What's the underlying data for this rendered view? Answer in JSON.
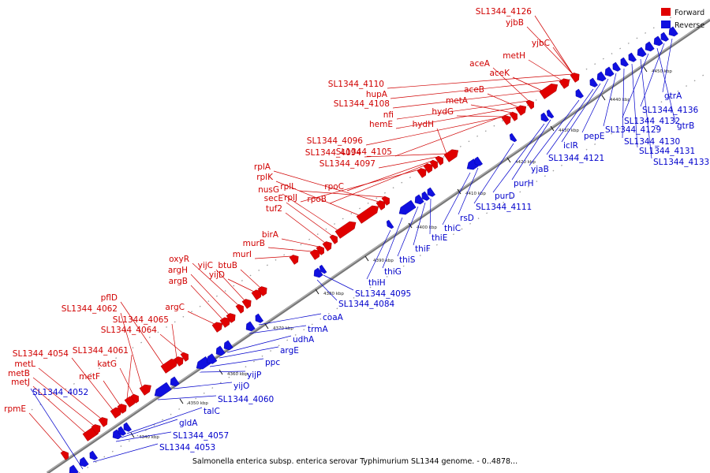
{
  "caption": "Salmonella enterica subsp. enterica serovar Typhimurium SL1344 genome. - 0..4878...",
  "legend": {
    "forward": "Forward",
    "reverse": "Reverse"
  },
  "colors": {
    "forward": "#e00000",
    "reverse": "#1010e0",
    "forward_label": "#d00000",
    "reverse_label": "#0000cc",
    "backbone": "#888888"
  },
  "ticks": [
    "4340 kbp",
    "4350 kbp",
    "4360 kbp",
    "4370 kbp",
    "4380 kbp",
    "4390 kbp",
    "4400 kbp",
    "4410 kbp",
    "4420 kbp",
    "4430 kbp",
    "4440 kbp",
    "4450 kbp"
  ],
  "forward_genes": [
    "rpmE",
    "metJ",
    "metB",
    "metL",
    "SL1344_4054",
    "metF",
    "SL1344_4061",
    "katG",
    "SL1344_4062",
    "pflD",
    "SL1344_4065",
    "SL1344_4064",
    "argC",
    "argB",
    "argH",
    "oxyR",
    "yijC",
    "yijD",
    "btuB",
    "murI",
    "murB",
    "birA",
    "tuf2",
    "secE",
    "nusG",
    "rplK",
    "rplA",
    "rplL",
    "rplJ",
    "rpoB",
    "rpoC",
    "SL1344_4097",
    "SL1344_4094",
    "SL1344_4096",
    "SL1344_4105",
    "hemE",
    "nfi",
    "SL1344_4108",
    "hupA",
    "SL1344_4110",
    "hydH",
    "hydG",
    "metA",
    "aceB",
    "aceA",
    "aceK",
    "metH",
    "yjbB",
    "SL1344_4126",
    "yjbC"
  ],
  "reverse_genes": [
    "SL1344_4052",
    "SL1344_4053",
    "SL1344_4057",
    "gldA",
    "talC",
    "SL1344_4060",
    "yijO",
    "yijP",
    "ppc",
    "argE",
    "udhA",
    "trmA",
    "coaA",
    "SL1344_4084",
    "SL1344_4095",
    "thiH",
    "thiG",
    "thiS",
    "thiF",
    "thiE",
    "thiC",
    "rsD",
    "SL1344_4111",
    "purD",
    "purH",
    "yjaB",
    "SL1344_4121",
    "iclR",
    "pepE",
    "SL1344_4129",
    "SL1344_4130",
    "SL1344_4131",
    "SL1344_4133",
    "SL1344_4132",
    "gtrB",
    "SL1344_4136",
    "gtrA"
  ]
}
